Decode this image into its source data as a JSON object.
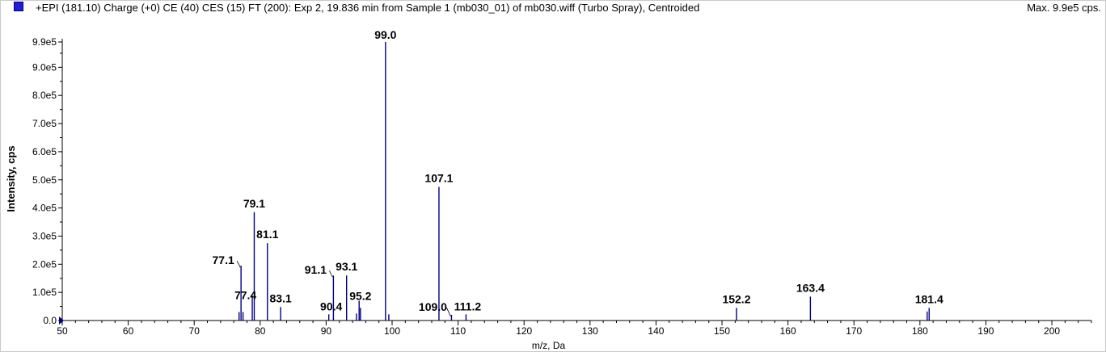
{
  "header": {
    "title": "+EPI (181.10) Charge (+0) CE (40) CES (15) FT (200): Exp 2, 19.836 min from Sample 1 (mb030_01) of mb030.wiff (Turbo Spray), Centroided",
    "max_label": "Max. 9.9e5 cps.",
    "legend_color": "#1f1fd6"
  },
  "chart_data": {
    "type": "bar",
    "title": "+EPI (181.10) Charge (+0) CE (40) CES (15) FT (200): Exp 2, 19.836 min from Sample 1 (mb030_01) of mb030.wiff (Turbo Spray), Centroided",
    "xlabel": "m/z, Da",
    "ylabel": "Intensity, cps",
    "xlim": [
      50,
      206
    ],
    "ylim": [
      0,
      990000.0
    ],
    "x_ticks": [
      50,
      60,
      70,
      80,
      90,
      100,
      110,
      120,
      130,
      140,
      150,
      160,
      170,
      180,
      190,
      200
    ],
    "y_ticks": [
      {
        "value": 0,
        "label": "0.0"
      },
      {
        "value": 100000,
        "label": "1.0e5"
      },
      {
        "value": 200000,
        "label": "2.0e5"
      },
      {
        "value": 300000,
        "label": "3.0e5"
      },
      {
        "value": 400000,
        "label": "4.0e5"
      },
      {
        "value": 500000,
        "label": "5.0e5"
      },
      {
        "value": 600000,
        "label": "6.0e5"
      },
      {
        "value": 700000,
        "label": "7.0e5"
      },
      {
        "value": 800000,
        "label": "8.0e5"
      },
      {
        "value": 900000,
        "label": "9.0e5"
      },
      {
        "value": 990000,
        "label": "9.9e5"
      }
    ],
    "series_color": "#00008b",
    "peaks": [
      {
        "mz": 76.8,
        "intensity": 30000
      },
      {
        "mz": 77.1,
        "intensity": 195000,
        "label": "77.1"
      },
      {
        "mz": 77.4,
        "intensity": 30000,
        "label": "77.4"
      },
      {
        "mz": 78.8,
        "intensity": 90000
      },
      {
        "mz": 79.1,
        "intensity": 385000,
        "label": "79.1"
      },
      {
        "mz": 81.1,
        "intensity": 275000,
        "label": "81.1"
      },
      {
        "mz": 83.1,
        "intensity": 48000,
        "label": "83.1"
      },
      {
        "mz": 90.4,
        "intensity": 22000,
        "label": "90.4"
      },
      {
        "mz": 91.1,
        "intensity": 160000,
        "label": "91.1"
      },
      {
        "mz": 93.1,
        "intensity": 160000,
        "label": "93.1"
      },
      {
        "mz": 94.6,
        "intensity": 25000
      },
      {
        "mz": 95.0,
        "intensity": 70000
      },
      {
        "mz": 95.2,
        "intensity": 45000,
        "label": "95.2"
      },
      {
        "mz": 99.0,
        "intensity": 990000,
        "label": "99.0"
      },
      {
        "mz": 99.5,
        "intensity": 22000
      },
      {
        "mz": 107.1,
        "intensity": 475000,
        "label": "107.1"
      },
      {
        "mz": 109.0,
        "intensity": 20000,
        "label": "109.0"
      },
      {
        "mz": 111.2,
        "intensity": 22000,
        "label": "111.2"
      },
      {
        "mz": 152.2,
        "intensity": 45000,
        "label": "152.2"
      },
      {
        "mz": 163.4,
        "intensity": 85000,
        "label": "163.4"
      },
      {
        "mz": 181.1,
        "intensity": 32000
      },
      {
        "mz": 181.4,
        "intensity": 45000,
        "label": "181.4"
      }
    ]
  }
}
